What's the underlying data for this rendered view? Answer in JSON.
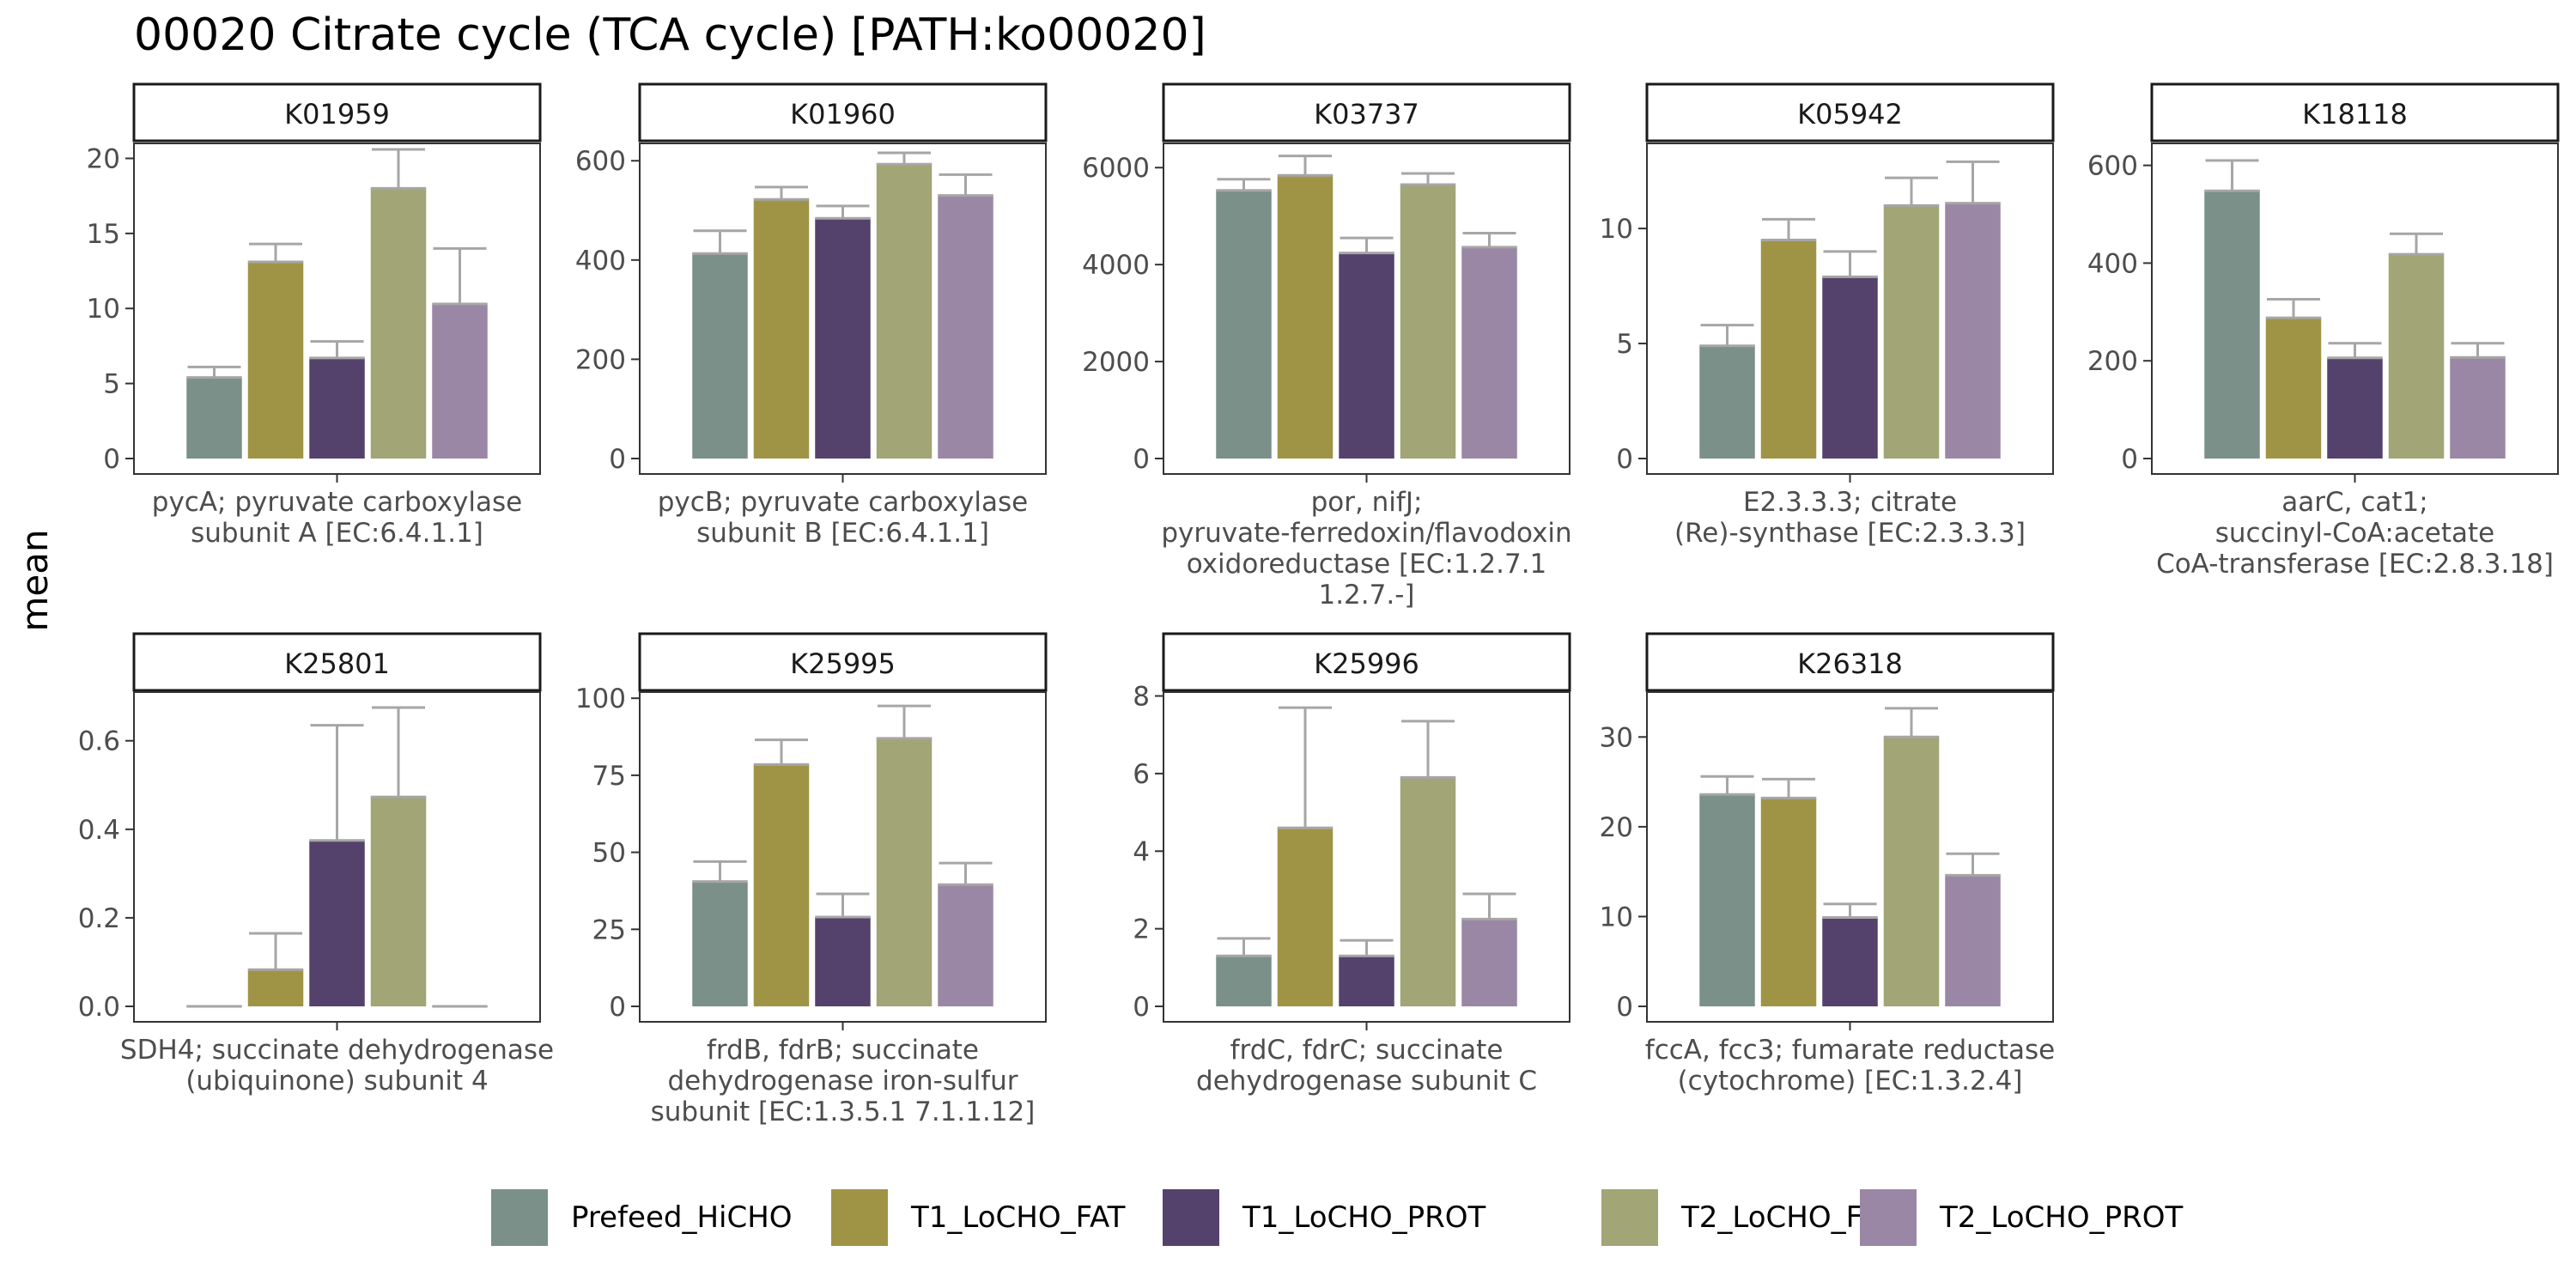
{
  "title": "00020 Citrate cycle (TCA cycle) [PATH:ko00020]",
  "ylabel": "mean",
  "groups": [
    "Prefeed_HiCHO",
    "T1_LoCHO_FAT",
    "T1_LoCHO_PROT",
    "T2_LoCHO_FAT",
    "T2_LoCHO_PROT"
  ],
  "colors": {
    "Prefeed_HiCHO": "#7a9088",
    "T1_LoCHO_FAT": "#9f9446",
    "T1_LoCHO_PROT": "#54426c",
    "T2_LoCHO_FAT": "#a2a575",
    "T2_LoCHO_PROT": "#9a87a5",
    "errorbar": "#a6a6a6",
    "strip_border": "#1a1a1a",
    "panel_border": "#333333",
    "axis_text": "#4d4d4d"
  },
  "chart_data": [
    {
      "type": "bar",
      "id": "K01959",
      "strip": "K01959",
      "xlabel": [
        "pycA; pyruvate carboxylase",
        "subunit A [EC:6.4.1.1]"
      ],
      "ylim": [
        0,
        21
      ],
      "yticks": [
        0,
        5,
        10,
        15,
        20
      ],
      "categories": [
        "Prefeed_HiCHO",
        "T1_LoCHO_FAT",
        "T1_LoCHO_PROT",
        "T2_LoCHO_FAT",
        "T2_LoCHO_PROT"
      ],
      "values": [
        5.4,
        13.1,
        6.7,
        18.0,
        10.3
      ],
      "errors": [
        0.7,
        1.2,
        1.1,
        2.6,
        3.7
      ]
    },
    {
      "type": "bar",
      "id": "K01960",
      "strip": "K01960",
      "xlabel": [
        "pycB; pyruvate carboxylase",
        "subunit B [EC:6.4.1.1]"
      ],
      "ylim": [
        0,
        635
      ],
      "yticks": [
        0,
        200,
        400,
        600
      ],
      "categories": [
        "Prefeed_HiCHO",
        "T1_LoCHO_FAT",
        "T1_LoCHO_PROT",
        "T2_LoCHO_FAT",
        "T2_LoCHO_PROT"
      ],
      "values": [
        413,
        522,
        484,
        593,
        530
      ],
      "errors": [
        46,
        25,
        25,
        23,
        42
      ]
    },
    {
      "type": "bar",
      "id": "K03737",
      "strip": "K03737",
      "xlabel": [
        "por, nifJ;",
        "pyruvate-ferredoxin/flavodoxin",
        "oxidoreductase [EC:1.2.7.1",
        "1.2.7.-]"
      ],
      "ylim": [
        0,
        6500
      ],
      "yticks": [
        0,
        2000,
        4000,
        6000
      ],
      "categories": [
        "Prefeed_HiCHO",
        "T1_LoCHO_FAT",
        "T1_LoCHO_PROT",
        "T2_LoCHO_FAT",
        "T2_LoCHO_PROT"
      ],
      "values": [
        5530,
        5840,
        4240,
        5650,
        4360
      ],
      "errors": [
        230,
        400,
        310,
        230,
        290
      ]
    },
    {
      "type": "bar",
      "id": "K05942",
      "strip": "K05942",
      "xlabel": [
        "E2.3.3.3; citrate",
        "(Re)-synthase [EC:2.3.3.3]"
      ],
      "ylim": [
        0,
        13.7
      ],
      "yticks": [
        0,
        5,
        10
      ],
      "categories": [
        "Prefeed_HiCHO",
        "T1_LoCHO_FAT",
        "T1_LoCHO_PROT",
        "T2_LoCHO_FAT",
        "T2_LoCHO_PROT"
      ],
      "values": [
        4.9,
        9.5,
        7.9,
        11.0,
        11.1
      ],
      "errors": [
        0.9,
        0.9,
        1.1,
        1.2,
        1.8
      ]
    },
    {
      "type": "bar",
      "id": "K18118",
      "strip": "K18118",
      "xlabel": [
        "aarC, cat1;",
        "succinyl-CoA:acetate",
        "CoA-transferase [EC:2.8.3.18]"
      ],
      "ylim": [
        0,
        645
      ],
      "yticks": [
        0,
        200,
        400,
        600
      ],
      "categories": [
        "Prefeed_HiCHO",
        "T1_LoCHO_FAT",
        "T1_LoCHO_PROT",
        "T2_LoCHO_FAT",
        "T2_LoCHO_PROT"
      ],
      "values": [
        548,
        288,
        206,
        418,
        207
      ],
      "errors": [
        62,
        38,
        30,
        42,
        29
      ]
    },
    {
      "type": "bar",
      "id": "K25801",
      "strip": "K25801",
      "xlabel": [
        "SDH4; succinate dehydrogenase",
        "(ubiquinone) subunit 4"
      ],
      "ylim": [
        0,
        0.71
      ],
      "yticks": [
        0.0,
        0.2,
        0.4,
        0.6
      ],
      "ytick_labels": [
        "0.0",
        "0.2",
        "0.4",
        "0.6"
      ],
      "categories": [
        "Prefeed_HiCHO",
        "T1_LoCHO_FAT",
        "T1_LoCHO_PROT",
        "T2_LoCHO_FAT",
        "T2_LoCHO_PROT"
      ],
      "values": [
        0.0,
        0.083,
        0.375,
        0.473,
        0.0
      ],
      "errors": [
        0.0,
        0.082,
        0.26,
        0.202,
        0.0
      ]
    },
    {
      "type": "bar",
      "id": "K25995",
      "strip": "K25995",
      "xlabel": [
        "frdB, fdrB; succinate",
        "dehydrogenase iron-sulfur",
        "subunit [EC:1.3.5.1 7.1.1.12]"
      ],
      "ylim": [
        0,
        102
      ],
      "yticks": [
        0,
        25,
        50,
        75,
        100
      ],
      "categories": [
        "Prefeed_HiCHO",
        "T1_LoCHO_FAT",
        "T1_LoCHO_PROT",
        "T2_LoCHO_FAT",
        "T2_LoCHO_PROT"
      ],
      "values": [
        40.5,
        78.5,
        29,
        87,
        39.5
      ],
      "errors": [
        6.5,
        8,
        7.5,
        10.5,
        7
      ]
    },
    {
      "type": "bar",
      "id": "K25996",
      "strip": "K25996",
      "xlabel": [
        "frdC, fdrC; succinate",
        "dehydrogenase subunit C"
      ],
      "ylim": [
        0,
        8.1
      ],
      "yticks": [
        0,
        2,
        4,
        6,
        8
      ],
      "categories": [
        "Prefeed_HiCHO",
        "T1_LoCHO_FAT",
        "T1_LoCHO_PROT",
        "T2_LoCHO_FAT",
        "T2_LoCHO_PROT"
      ],
      "values": [
        1.3,
        4.6,
        1.3,
        5.9,
        2.25
      ],
      "errors": [
        0.45,
        3.1,
        0.4,
        1.45,
        0.65
      ]
    },
    {
      "type": "bar",
      "id": "K26318",
      "strip": "K26318",
      "xlabel": [
        "fccA, fcc3; fumarate reductase",
        "(cytochrome) [EC:1.3.2.4]"
      ],
      "ylim": [
        0,
        35
      ],
      "yticks": [
        0,
        10,
        20,
        30
      ],
      "categories": [
        "Prefeed_HiCHO",
        "T1_LoCHO_FAT",
        "T1_LoCHO_PROT",
        "T2_LoCHO_FAT",
        "T2_LoCHO_PROT"
      ],
      "values": [
        23.6,
        23.2,
        9.9,
        30.0,
        14.6
      ],
      "errors": [
        2.0,
        2.1,
        1.5,
        3.2,
        2.4
      ]
    }
  ]
}
